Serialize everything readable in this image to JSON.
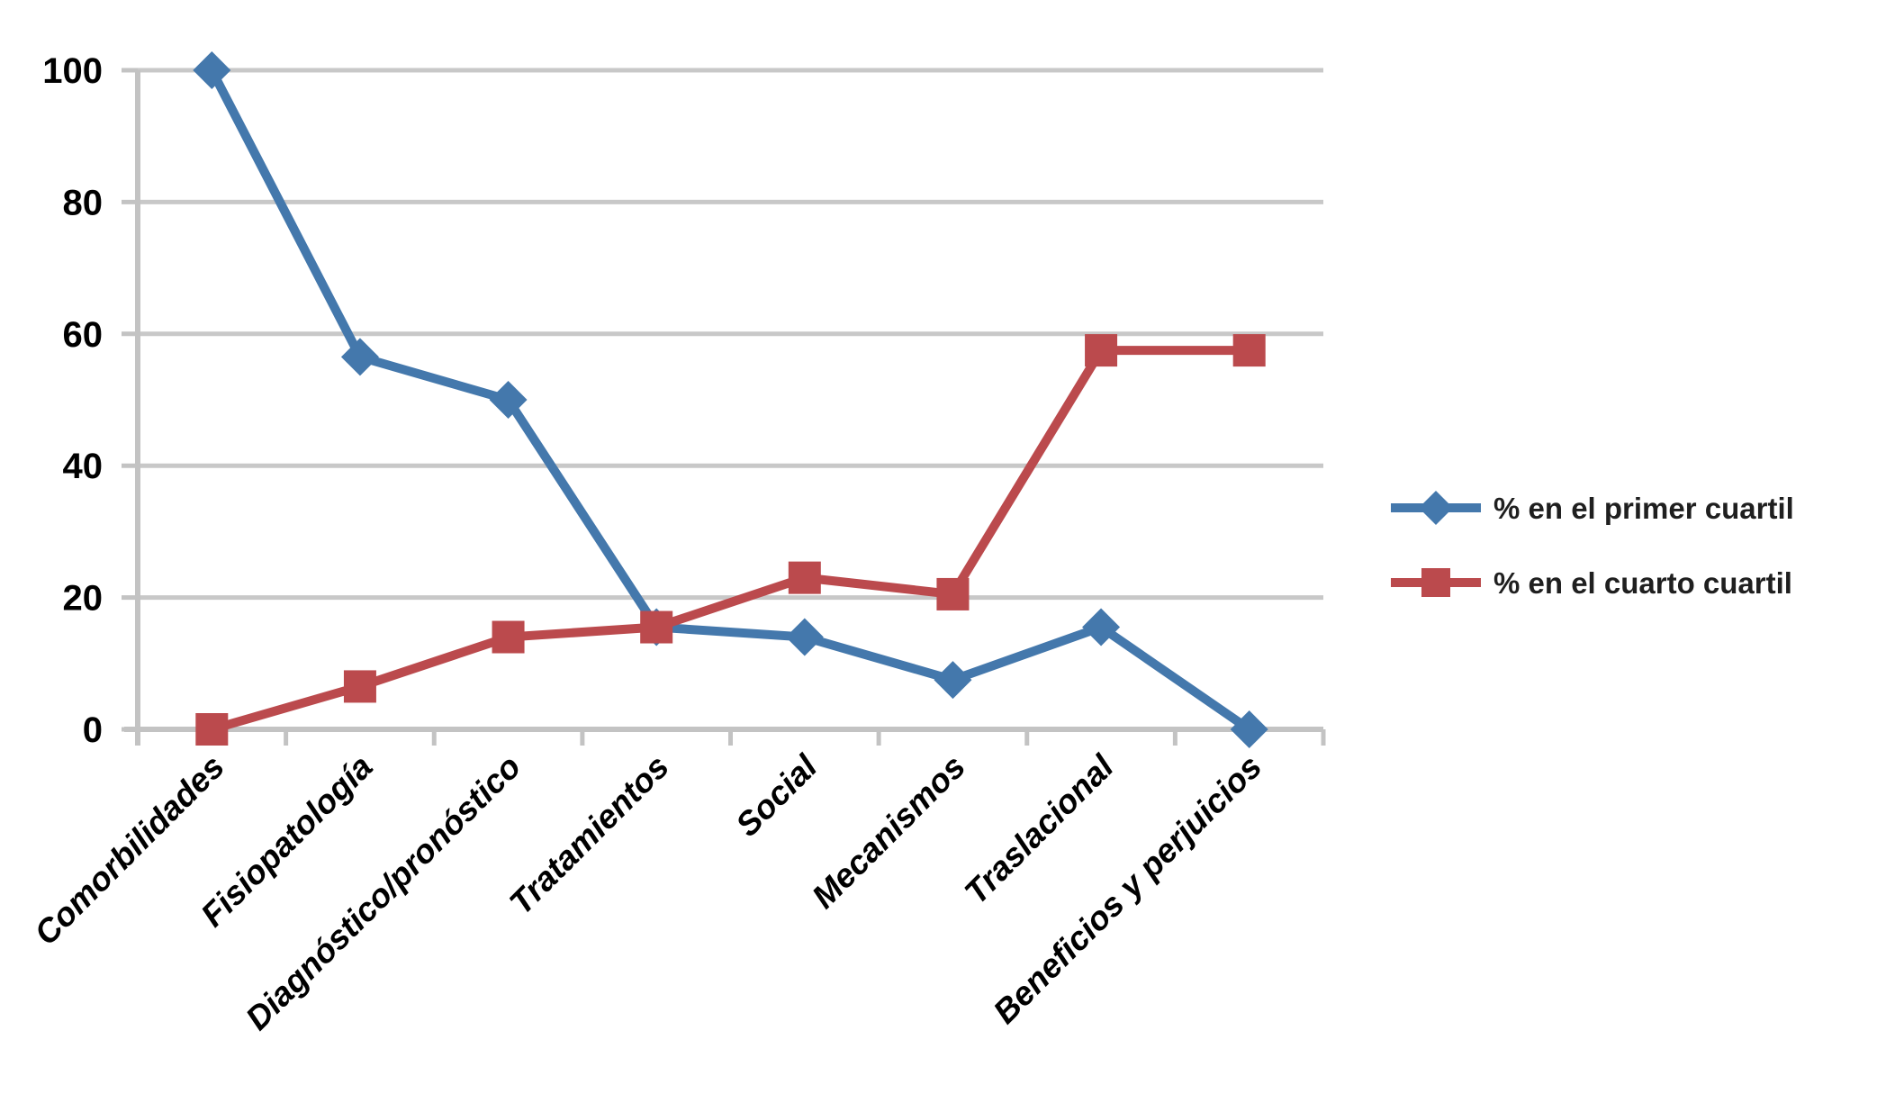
{
  "chart_data": {
    "type": "line",
    "title": "",
    "xlabel": "",
    "ylabel": "",
    "categories": [
      "Comorbilidades",
      "Fisiopatología",
      "Diagnóstico/pronóstico",
      "Tratamientos",
      "Social",
      "Mecanismos",
      "Traslacional",
      "Beneficios y perjuicios"
    ],
    "series": [
      {
        "name": "% en el primer cuartil",
        "marker": "diamond",
        "color": "#4478AC",
        "values": [
          100,
          56.5,
          50,
          15.5,
          14,
          7.5,
          15.5,
          0
        ]
      },
      {
        "name": "% en el cuarto cuartil",
        "marker": "square",
        "color": "#BB4A4D",
        "values": [
          0,
          6.5,
          14,
          15.5,
          23,
          20.5,
          57.5,
          57.5
        ]
      }
    ],
    "ylim": [
      0,
      100
    ],
    "yticks": [
      0,
      20,
      40,
      60,
      80,
      100
    ],
    "grid": "horizontal",
    "legend_position": "right",
    "colors": {
      "gridline": "#C8C8C8",
      "axis": "#C3C3C3",
      "tick_label": "#000000",
      "legend_text": "#1F1F1F",
      "background": "#FFFFFF"
    }
  }
}
